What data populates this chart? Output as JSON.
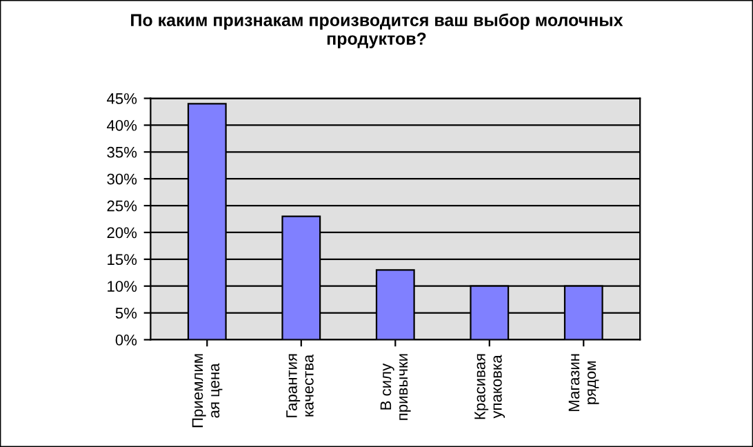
{
  "chart_data": {
    "type": "bar",
    "title": "По каким признакам производится ваш выбор молочных\nпродуктов?",
    "categories": [
      "Приемлим\nая цена",
      "Гарантия\nкачества",
      "В силу\nпривычки",
      "Красивая\nупаковка",
      "Магазин\nрядом"
    ],
    "values": [
      44,
      23,
      13,
      10,
      10
    ],
    "color": "#8080ff",
    "ylim": [
      0,
      45
    ],
    "yticks": [
      {
        "value": 0,
        "label": "0%"
      },
      {
        "value": 5,
        "label": "5%"
      },
      {
        "value": 10,
        "label": "10%"
      },
      {
        "value": 15,
        "label": "15%"
      },
      {
        "value": 20,
        "label": "20%"
      },
      {
        "value": 25,
        "label": "25%"
      },
      {
        "value": 30,
        "label": "30%"
      },
      {
        "value": 35,
        "label": "35%"
      },
      {
        "value": 40,
        "label": "40%"
      },
      {
        "value": 45,
        "label": "45%"
      }
    ],
    "grid": "y",
    "legend": false
  }
}
